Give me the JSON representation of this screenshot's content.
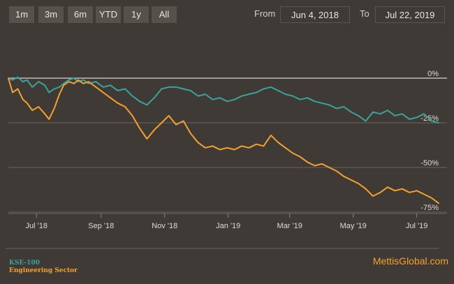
{
  "range_buttons": [
    "1m",
    "3m",
    "6m",
    "YTD",
    "1y",
    "All"
  ],
  "date_range": {
    "from_label": "From",
    "from_value": "Jun 4, 2018",
    "to_label": "To",
    "to_value": "Jul 22, 2019"
  },
  "legend": [
    {
      "name": "KSE-100",
      "color": "#3aa39b"
    },
    {
      "name": "Engineering Sector",
      "color": "#f5a12e"
    }
  ],
  "brand": "MettisGlobal.com",
  "chart_data": {
    "type": "line",
    "x_range": [
      "2018-06-04",
      "2019-07-22"
    ],
    "y_range": [
      -75,
      0
    ],
    "y_ticks": [
      {
        "value": 0,
        "label": "0%"
      },
      {
        "value": -25,
        "label": "-25%"
      },
      {
        "value": -50,
        "label": "-50%"
      },
      {
        "value": -75,
        "label": "-75%"
      }
    ],
    "x_ticks": [
      {
        "date": "2018-07-01",
        "label": "Jul '18"
      },
      {
        "date": "2018-09-01",
        "label": "Sep '18"
      },
      {
        "date": "2018-11-01",
        "label": "Nov '18"
      },
      {
        "date": "2019-01-01",
        "label": "Jan '19"
      },
      {
        "date": "2019-03-01",
        "label": "Mar '19"
      },
      {
        "date": "2019-05-01",
        "label": "May '19"
      },
      {
        "date": "2019-07-01",
        "label": "Jul '19"
      }
    ],
    "series": [
      {
        "name": "KSE-100",
        "color": "#3aa39b",
        "points": [
          [
            "2018-06-04",
            0
          ],
          [
            "2018-06-08",
            -1
          ],
          [
            "2018-06-13",
            0.5
          ],
          [
            "2018-06-18",
            -2
          ],
          [
            "2018-06-22",
            -1
          ],
          [
            "2018-06-27",
            -5
          ],
          [
            "2018-07-03",
            -2
          ],
          [
            "2018-07-09",
            -4
          ],
          [
            "2018-07-13",
            -8
          ],
          [
            "2018-07-18",
            -6
          ],
          [
            "2018-07-23",
            -5
          ],
          [
            "2018-07-27",
            -3
          ],
          [
            "2018-08-01",
            -1
          ],
          [
            "2018-08-06",
            0
          ],
          [
            "2018-08-10",
            -2
          ],
          [
            "2018-08-15",
            -1
          ],
          [
            "2018-08-20",
            -3
          ],
          [
            "2018-08-27",
            -2
          ],
          [
            "2018-09-03",
            -5
          ],
          [
            "2018-09-10",
            -4
          ],
          [
            "2018-09-17",
            -7
          ],
          [
            "2018-09-24",
            -6
          ],
          [
            "2018-10-01",
            -10
          ],
          [
            "2018-10-08",
            -13
          ],
          [
            "2018-10-15",
            -15
          ],
          [
            "2018-10-22",
            -11
          ],
          [
            "2018-10-29",
            -6
          ],
          [
            "2018-11-05",
            -5
          ],
          [
            "2018-11-12",
            -5
          ],
          [
            "2018-11-19",
            -6
          ],
          [
            "2018-11-26",
            -7
          ],
          [
            "2018-12-03",
            -10
          ],
          [
            "2018-12-10",
            -9
          ],
          [
            "2018-12-17",
            -12
          ],
          [
            "2018-12-24",
            -11
          ],
          [
            "2018-12-31",
            -13
          ],
          [
            "2019-01-07",
            -12
          ],
          [
            "2019-01-14",
            -10
          ],
          [
            "2019-01-21",
            -9
          ],
          [
            "2019-01-28",
            -8
          ],
          [
            "2019-02-04",
            -6
          ],
          [
            "2019-02-11",
            -5
          ],
          [
            "2019-02-18",
            -7
          ],
          [
            "2019-02-25",
            -9
          ],
          [
            "2019-03-04",
            -10
          ],
          [
            "2019-03-11",
            -12
          ],
          [
            "2019-03-18",
            -11
          ],
          [
            "2019-03-25",
            -13
          ],
          [
            "2019-04-01",
            -14
          ],
          [
            "2019-04-08",
            -15
          ],
          [
            "2019-04-15",
            -17
          ],
          [
            "2019-04-22",
            -16
          ],
          [
            "2019-04-29",
            -19
          ],
          [
            "2019-05-06",
            -21
          ],
          [
            "2019-05-13",
            -24
          ],
          [
            "2019-05-20",
            -19
          ],
          [
            "2019-05-27",
            -20
          ],
          [
            "2019-06-03",
            -18
          ],
          [
            "2019-06-10",
            -21
          ],
          [
            "2019-06-17",
            -20
          ],
          [
            "2019-06-24",
            -23
          ],
          [
            "2019-07-01",
            -22
          ],
          [
            "2019-07-08",
            -20
          ],
          [
            "2019-07-15",
            -24
          ],
          [
            "2019-07-22",
            -25
          ]
        ]
      },
      {
        "name": "Engineering Sector",
        "color": "#f5a12e",
        "points": [
          [
            "2018-06-04",
            0
          ],
          [
            "2018-06-08",
            -8
          ],
          [
            "2018-06-13",
            -6
          ],
          [
            "2018-06-18",
            -12
          ],
          [
            "2018-06-22",
            -14
          ],
          [
            "2018-06-27",
            -18
          ],
          [
            "2018-07-03",
            -16
          ],
          [
            "2018-07-09",
            -20
          ],
          [
            "2018-07-13",
            -23
          ],
          [
            "2018-07-18",
            -17
          ],
          [
            "2018-07-23",
            -9
          ],
          [
            "2018-07-27",
            -4
          ],
          [
            "2018-08-01",
            -2
          ],
          [
            "2018-08-06",
            -3
          ],
          [
            "2018-08-10",
            -1
          ],
          [
            "2018-08-15",
            -3
          ],
          [
            "2018-08-20",
            -2
          ],
          [
            "2018-08-27",
            -5
          ],
          [
            "2018-09-03",
            -8
          ],
          [
            "2018-09-10",
            -11
          ],
          [
            "2018-09-17",
            -14
          ],
          [
            "2018-09-24",
            -16
          ],
          [
            "2018-10-01",
            -21
          ],
          [
            "2018-10-08",
            -28
          ],
          [
            "2018-10-15",
            -34
          ],
          [
            "2018-10-22",
            -29
          ],
          [
            "2018-10-29",
            -25
          ],
          [
            "2018-11-05",
            -21
          ],
          [
            "2018-11-12",
            -26
          ],
          [
            "2018-11-19",
            -24
          ],
          [
            "2018-11-26",
            -31
          ],
          [
            "2018-12-03",
            -36
          ],
          [
            "2018-12-10",
            -39
          ],
          [
            "2018-12-17",
            -38
          ],
          [
            "2018-12-24",
            -40
          ],
          [
            "2018-12-31",
            -39
          ],
          [
            "2019-01-07",
            -40
          ],
          [
            "2019-01-14",
            -38
          ],
          [
            "2019-01-21",
            -39
          ],
          [
            "2019-01-28",
            -37
          ],
          [
            "2019-02-04",
            -38
          ],
          [
            "2019-02-11",
            -32
          ],
          [
            "2019-02-18",
            -36
          ],
          [
            "2019-02-25",
            -39
          ],
          [
            "2019-03-04",
            -42
          ],
          [
            "2019-03-11",
            -44
          ],
          [
            "2019-03-18",
            -47
          ],
          [
            "2019-03-25",
            -49
          ],
          [
            "2019-04-01",
            -48
          ],
          [
            "2019-04-08",
            -50
          ],
          [
            "2019-04-15",
            -52
          ],
          [
            "2019-04-22",
            -55
          ],
          [
            "2019-04-29",
            -57
          ],
          [
            "2019-05-06",
            -59
          ],
          [
            "2019-05-13",
            -62
          ],
          [
            "2019-05-20",
            -66
          ],
          [
            "2019-05-27",
            -64
          ],
          [
            "2019-06-03",
            -61
          ],
          [
            "2019-06-10",
            -63
          ],
          [
            "2019-06-17",
            -62
          ],
          [
            "2019-06-24",
            -64
          ],
          [
            "2019-07-01",
            -63
          ],
          [
            "2019-07-08",
            -65
          ],
          [
            "2019-07-15",
            -67
          ],
          [
            "2019-07-22",
            -70
          ]
        ]
      }
    ]
  }
}
